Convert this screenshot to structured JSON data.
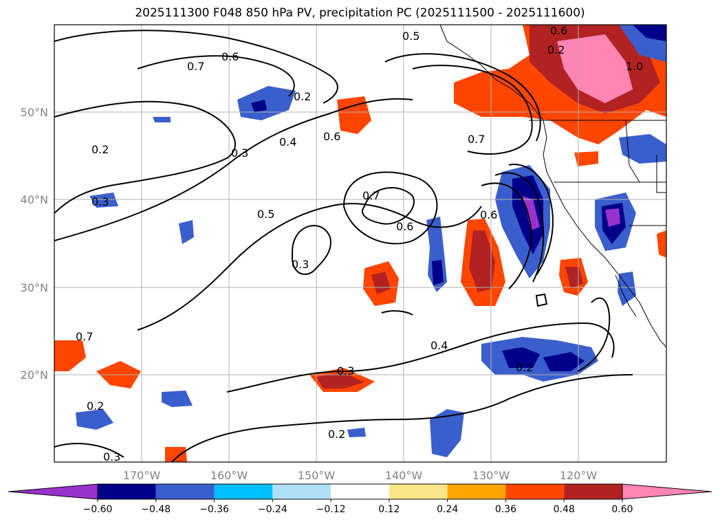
{
  "title": "2025111300 F048 850 hPa PV, precipitation PC (2025111500 - 2025111600)",
  "lon_labels": [
    "170°W",
    "160°W",
    "150°W",
    "140°W",
    "130°W",
    "120°W"
  ],
  "lat_labels": [
    "50°N",
    "40°N",
    "30°N",
    "20°N"
  ],
  "contour_labels": [
    "0.5",
    "0.7",
    "0.6",
    "0.2",
    "0.3",
    "0.4",
    "0.6",
    "0.7",
    "0.2",
    "0.3",
    "0.7",
    "0.5",
    "0.6",
    "0.6",
    "0.3",
    "0.4",
    "0.3",
    "0.2",
    "0.2",
    "0.2",
    "0.3",
    "0.7",
    "0.6",
    "0.2",
    "1.0"
  ],
  "colorbar": {
    "ticks": [
      "−0.60",
      "−0.48",
      "−0.36",
      "−0.24",
      "−0.12",
      "0.12",
      "0.24",
      "0.36",
      "0.48",
      "0.60"
    ],
    "colors": [
      "#9932cc",
      "#00008b",
      "#3a5fcd",
      "#00bfff",
      "#b0e0f8",
      "#ffffff",
      "#fce68a",
      "#ffa500",
      "#ff4500",
      "#b22222",
      "#ff85b5"
    ]
  }
}
